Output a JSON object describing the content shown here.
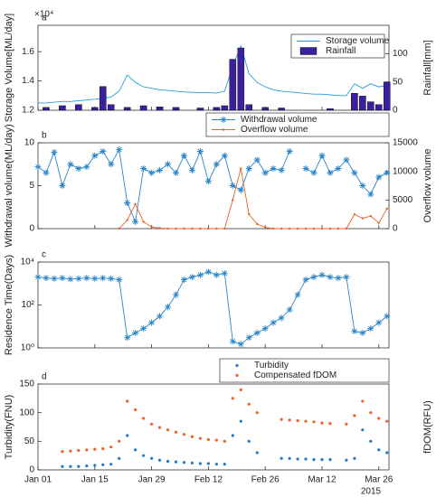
{
  "chart_data": [
    {
      "type": "combo",
      "panel_label": "a",
      "y_exponent": "×10⁴",
      "ylabel": "Storage Volume[ML/day]",
      "y2label": "Rainfall[mm]",
      "x": [
        0,
        2,
        4,
        6,
        8,
        10,
        12,
        14,
        16,
        18,
        20,
        22,
        24,
        26,
        28,
        30,
        32,
        34,
        36,
        38,
        40,
        42,
        44,
        46,
        48,
        50,
        52,
        54,
        56,
        58,
        60,
        62,
        64,
        66,
        68,
        70,
        72,
        74,
        76,
        78,
        80,
        82,
        84,
        86
      ],
      "xlim": [
        0,
        86.5
      ],
      "xticks": [
        0,
        14,
        28,
        42,
        56,
        70,
        84
      ],
      "ylim": [
        12000,
        17800
      ],
      "yticks": [
        {
          "value": 12000,
          "label": "1.2"
        },
        {
          "value": 14000,
          "label": "1.4"
        },
        {
          "value": 16000,
          "label": "1.6"
        }
      ],
      "y2lim": [
        0,
        150
      ],
      "y2ticks": [
        0,
        50,
        100
      ],
      "legend": "inside-top-right",
      "series": [
        {
          "name": "Storage volume",
          "style": "line",
          "color": "#2a9fd8",
          "values": [
            12500,
            12500,
            12550,
            12600,
            12600,
            12650,
            12700,
            12750,
            12800,
            12900,
            13300,
            14400,
            13900,
            13600,
            13500,
            13400,
            13350,
            13300,
            13250,
            13220,
            13200,
            13200,
            13180,
            13300,
            15000,
            16400,
            14500,
            13900,
            13600,
            13400,
            13300,
            13250,
            13200,
            13150,
            13100,
            13100,
            13050,
            13000,
            13000,
            13800,
            13500,
            13800,
            13600,
            13700
          ]
        },
        {
          "name": "Rainfall",
          "style": "bar",
          "axis": "y2",
          "color": "#3a1f9e",
          "values": [
            null,
            5,
            null,
            8,
            null,
            10,
            null,
            5,
            42,
            10,
            null,
            5,
            null,
            8,
            null,
            6,
            null,
            5,
            null,
            null,
            4,
            null,
            5,
            8,
            90,
            110,
            10,
            null,
            5,
            null,
            4,
            null,
            null,
            null,
            null,
            null,
            3,
            null,
            null,
            30,
            25,
            15,
            10,
            50
          ]
        }
      ]
    },
    {
      "type": "line",
      "panel_label": "b",
      "ylabel": "Withdrawal volume(ML/day)",
      "y2label": "Overflow volume",
      "x": [
        0,
        2,
        4,
        6,
        8,
        10,
        12,
        14,
        16,
        18,
        20,
        22,
        24,
        26,
        28,
        30,
        32,
        34,
        36,
        38,
        40,
        42,
        44,
        46,
        48,
        50,
        52,
        54,
        56,
        58,
        60,
        62,
        64,
        66,
        68,
        70,
        72,
        74,
        76,
        78,
        80,
        82,
        84,
        86
      ],
      "xlim": [
        0,
        86.5
      ],
      "xticks": [
        0,
        14,
        28,
        42,
        56,
        70,
        84
      ],
      "ylim": [
        0,
        10
      ],
      "yticks": [
        0,
        5,
        10
      ],
      "y2lim": [
        0,
        15000
      ],
      "y2ticks": [
        0,
        5000,
        10000,
        15000
      ],
      "legend": "above-right",
      "series": [
        {
          "name": "Withdrawal volume",
          "style": "star",
          "color": "#2a86c8",
          "values": [
            7.2,
            6.5,
            8.9,
            5.0,
            7.5,
            7.0,
            7.2,
            8.5,
            9.0,
            7.5,
            9.2,
            3.0,
            0.8,
            7.0,
            6.5,
            6.8,
            7.5,
            6.5,
            8.5,
            6.8,
            9.0,
            5.5,
            7.5,
            8.5,
            5.0,
            4.5,
            7.0,
            8.0,
            6.5,
            7.0,
            6.8,
            9.0,
            null,
            7.0,
            6.5,
            8.5,
            6.5,
            7.0,
            8.0,
            6.5,
            5.0,
            4.0,
            6.0,
            6.5
          ]
        },
        {
          "name": "Overflow volume",
          "style": "dot",
          "axis": "y2",
          "color": "#e8622a",
          "values": [
            null,
            null,
            null,
            null,
            null,
            null,
            null,
            null,
            null,
            null,
            0,
            1500,
            4300,
            1200,
            300,
            100,
            0,
            0,
            0,
            0,
            0,
            0,
            0,
            0,
            5000,
            10500,
            2500,
            800,
            200,
            0,
            0,
            0,
            0,
            0,
            0,
            0,
            0,
            0,
            0,
            2500,
            1800,
            2200,
            1000,
            3500
          ]
        }
      ]
    },
    {
      "type": "line",
      "panel_label": "c",
      "ylabel": "Residence Time(Days)",
      "log": true,
      "x": [
        0,
        2,
        4,
        6,
        8,
        10,
        12,
        14,
        16,
        18,
        20,
        22,
        24,
        26,
        28,
        30,
        32,
        34,
        36,
        38,
        40,
        42,
        44,
        46,
        48,
        50,
        52,
        54,
        56,
        58,
        60,
        62,
        64,
        66,
        68,
        70,
        72,
        74,
        76,
        78,
        80,
        82,
        84,
        86
      ],
      "xlim": [
        0,
        86.5
      ],
      "xticks": [
        0,
        14,
        28,
        42,
        56,
        70,
        84
      ],
      "ylim": [
        1,
        10000
      ],
      "yticks": [
        {
          "value": 1,
          "label": "10⁰"
        },
        {
          "value": 100,
          "label": "10²"
        },
        {
          "value": 10000,
          "label": "10⁴"
        }
      ],
      "series": [
        {
          "style": "star",
          "color": "#2a86c8",
          "values": [
            2000,
            1800,
            1700,
            1800,
            1600,
            1700,
            1800,
            1700,
            1800,
            1700,
            1500,
            3,
            5,
            8,
            15,
            30,
            80,
            300,
            1500,
            2000,
            2500,
            3500,
            2500,
            3000,
            2,
            1.5,
            3,
            5,
            8,
            15,
            25,
            60,
            300,
            1500,
            2000,
            2500,
            2000,
            1800,
            2000,
            6,
            5,
            8,
            15,
            30
          ]
        }
      ]
    },
    {
      "type": "scatter",
      "panel_label": "d",
      "ylabel": "Turbidity(FNU)",
      "y2label": "fDOM(RFU)",
      "x_year_label": "2015",
      "x": [
        0,
        2,
        4,
        6,
        8,
        10,
        12,
        14,
        16,
        18,
        20,
        22,
        24,
        26,
        28,
        30,
        32,
        34,
        36,
        38,
        40,
        42,
        44,
        46,
        48,
        50,
        52,
        54,
        56,
        58,
        60,
        62,
        64,
        66,
        68,
        70,
        72,
        74,
        76,
        78,
        80,
        82,
        84,
        86
      ],
      "xlim": [
        0,
        86.5
      ],
      "xticks": [
        {
          "value": 0,
          "label": "Jan 01"
        },
        {
          "value": 14,
          "label": "Jan 15"
        },
        {
          "value": 28,
          "label": "Jan 29"
        },
        {
          "value": 42,
          "label": "Feb 12"
        },
        {
          "value": 56,
          "label": "Feb 26"
        },
        {
          "value": 70,
          "label": "Mar 12"
        },
        {
          "value": 84,
          "label": "Mar 26"
        }
      ],
      "ylim": [
        0,
        150
      ],
      "yticks": [
        0,
        50,
        100,
        150
      ],
      "legend": "above-right",
      "series": [
        {
          "name": "Turbidity",
          "style": "dots",
          "color": "#1f78c8",
          "values": [
            null,
            null,
            null,
            6,
            6,
            6,
            7,
            8,
            9,
            10,
            20,
            60,
            35,
            25,
            20,
            17,
            15,
            14,
            13,
            12,
            11,
            11,
            10,
            10,
            60,
            85,
            50,
            30,
            null,
            null,
            20,
            20,
            19,
            19,
            18,
            18,
            18,
            null,
            17,
            20,
            70,
            50,
            35,
            30
          ]
        },
        {
          "name": "Compensated fDOM",
          "style": "dots",
          "color": "#f0602a",
          "values": [
            null,
            null,
            null,
            32,
            33,
            34,
            35,
            36,
            37,
            40,
            50,
            120,
            105,
            90,
            80,
            74,
            70,
            66,
            62,
            58,
            55,
            53,
            52,
            50,
            125,
            140,
            115,
            100,
            null,
            null,
            88,
            87,
            86,
            85,
            84,
            82,
            81,
            null,
            80,
            95,
            120,
            100,
            90,
            85
          ]
        }
      ]
    }
  ]
}
